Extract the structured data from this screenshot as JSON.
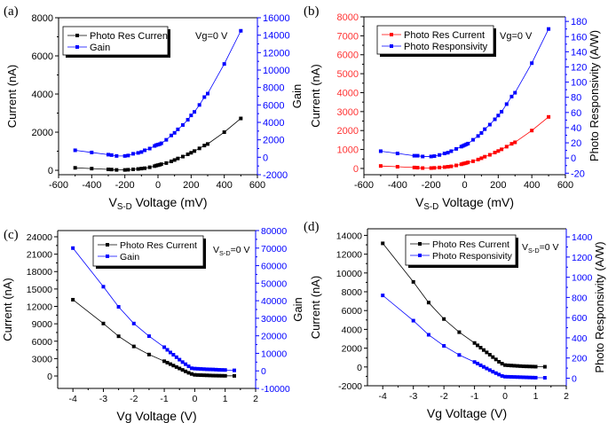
{
  "chart_data": [
    {
      "panel_label": "(a)",
      "type": "line",
      "xlabel": {
        "main": "V",
        "sub": "S-D",
        "rest": " Voltage (mV)"
      },
      "ylabel_left": "Current (nA)",
      "ylabel_right": "Gain",
      "annotation": {
        "main": "Vg=0 V",
        "sub": "",
        "rest": ""
      },
      "xlim": [
        -600,
        600
      ],
      "xticks": [
        -600,
        -400,
        -200,
        0,
        200,
        400,
        600
      ],
      "ylim_left": [
        -230,
        8000
      ],
      "yticks_left": [
        0,
        2000,
        4000,
        6000,
        8000
      ],
      "ylim_right": [
        -2000,
        16000
      ],
      "yticks_right": [
        -2000,
        0,
        2000,
        4000,
        6000,
        8000,
        10000,
        12000,
        14000,
        16000
      ],
      "left_tick_color": "#000000",
      "right_tick_color": "#0000ff",
      "legend_placement": "top-left",
      "grid": false,
      "x": [
        -500,
        -400,
        -300,
        -280,
        -250,
        -200,
        -180,
        -150,
        -120,
        -100,
        -80,
        -50,
        -20,
        -10,
        0,
        10,
        20,
        50,
        80,
        100,
        120,
        150,
        180,
        200,
        220,
        250,
        280,
        300,
        400,
        500
      ],
      "series": [
        {
          "name": "Photo Res Current",
          "axis": "left",
          "color": "#000000",
          "values": [
            130,
            90,
            50,
            40,
            20,
            20,
            30,
            50,
            70,
            90,
            110,
            160,
            220,
            250,
            270,
            290,
            320,
            380,
            470,
            540,
            620,
            720,
            840,
            920,
            1010,
            1150,
            1300,
            1380,
            2000,
            2720
          ]
        },
        {
          "name": "Gain",
          "axis": "right",
          "color": "#0000ff",
          "values": [
            800,
            550,
            300,
            250,
            150,
            150,
            200,
            400,
            500,
            600,
            800,
            1000,
            1300,
            1400,
            1450,
            1500,
            1600,
            2000,
            2500,
            2800,
            3200,
            3700,
            4300,
            4800,
            5200,
            6000,
            6900,
            7300,
            10700,
            14500
          ]
        }
      ]
    },
    {
      "panel_label": "(b)",
      "type": "line",
      "xlabel": {
        "main": "V",
        "sub": "S-D",
        "rest": " Voltage (mV)"
      },
      "ylabel_left": "Current (nA)",
      "ylabel_right": "Photo Responsivity (A/W)",
      "annotation": {
        "main": "Vg=0 V",
        "sub": "",
        "rest": ""
      },
      "xlim": [
        -600,
        600
      ],
      "xticks": [
        -600,
        -400,
        -200,
        0,
        200,
        400,
        600
      ],
      "ylim_left": [
        -330,
        8000
      ],
      "yticks_left": [
        0,
        1000,
        2000,
        3000,
        4000,
        5000,
        6000,
        7000,
        8000
      ],
      "ylim_right": [
        -22,
        186
      ],
      "yticks_right": [
        -20,
        0,
        20,
        40,
        60,
        80,
        100,
        120,
        140,
        160,
        180
      ],
      "left_tick_color": "#ff3333",
      "right_tick_color": "#0000ff",
      "legend_placement": "top-left",
      "grid": false,
      "x": [
        -500,
        -400,
        -300,
        -280,
        -250,
        -200,
        -180,
        -150,
        -120,
        -100,
        -80,
        -50,
        -20,
        -10,
        0,
        10,
        20,
        50,
        80,
        100,
        120,
        150,
        180,
        200,
        220,
        250,
        280,
        300,
        400,
        500
      ],
      "series": [
        {
          "name": "Photo Res Current",
          "axis": "left",
          "color": "#ff0000",
          "values": [
            130,
            90,
            50,
            40,
            20,
            20,
            30,
            50,
            70,
            90,
            110,
            160,
            220,
            250,
            270,
            290,
            320,
            380,
            470,
            540,
            620,
            720,
            840,
            920,
            1010,
            1150,
            1300,
            1380,
            2000,
            2720
          ]
        },
        {
          "name": "Photo Responsivity",
          "axis": "right",
          "color": "#0000ff",
          "values": [
            9,
            6,
            3,
            3,
            2,
            2,
            2.5,
            4,
            6,
            7,
            9,
            12,
            15,
            16,
            17,
            18,
            19,
            24,
            29,
            33,
            38,
            44,
            51,
            56,
            61,
            71,
            81,
            86,
            125,
            170
          ]
        }
      ]
    },
    {
      "panel_label": "(c)",
      "type": "line",
      "xlabel": {
        "main": "Vg Voltage (V)",
        "sub": "",
        "rest": ""
      },
      "ylabel_left": "Current (nA)",
      "ylabel_right": "Gain",
      "annotation": {
        "main": "V",
        "sub": "S-D",
        "rest": "=0 V"
      },
      "xlim": [
        -4.5,
        2
      ],
      "xticks": [
        -4,
        -3,
        -2,
        -1,
        0,
        1,
        2
      ],
      "ylim_left": [
        -2140,
        25070
      ],
      "yticks_left": [
        0,
        3000,
        6000,
        9000,
        12000,
        15000,
        18000,
        21000,
        24000
      ],
      "ylim_right": [
        -10000,
        80000
      ],
      "yticks_right": [
        -10000,
        0,
        10000,
        20000,
        30000,
        40000,
        50000,
        60000,
        70000,
        80000
      ],
      "left_tick_color": "#000000",
      "right_tick_color": "#0000ff",
      "legend_placement": "top-center",
      "grid": false,
      "x": [
        -4,
        -3,
        -2.5,
        -2,
        -1.5,
        -1,
        -0.9,
        -0.8,
        -0.7,
        -0.6,
        -0.5,
        -0.4,
        -0.3,
        -0.2,
        -0.1,
        0,
        0.1,
        0.2,
        0.3,
        0.4,
        0.5,
        0.6,
        0.7,
        0.8,
        0.9,
        1.0,
        1.3
      ],
      "series": [
        {
          "name": "Photo Res Current",
          "axis": "left",
          "color": "#000000",
          "values": [
            13150,
            9050,
            6850,
            5100,
            3700,
            2550,
            2300,
            2050,
            1800,
            1550,
            1300,
            1050,
            800,
            550,
            350,
            200,
            170,
            150,
            130,
            110,
            90,
            70,
            60,
            50,
            40,
            30,
            20
          ]
        },
        {
          "name": "Gain",
          "axis": "right",
          "color": "#0000ff",
          "values": [
            70000,
            48000,
            36500,
            27000,
            19800,
            13500,
            12000,
            10500,
            9200,
            7800,
            6400,
            5000,
            3800,
            2600,
            1500,
            1300,
            1200,
            1100,
            1000,
            900,
            850,
            800,
            700,
            600,
            550,
            500,
            300
          ]
        }
      ]
    },
    {
      "panel_label": "(d)",
      "type": "line",
      "xlabel": {
        "main": "Vg Voltage (V)",
        "sub": "",
        "rest": ""
      },
      "ylabel_left": "Current (nA)",
      "ylabel_right": "Photo Responsivity (A/W)",
      "annotation": {
        "main": "V",
        "sub": "S-D",
        "rest": "=0 V"
      },
      "xlim": [
        -4.5,
        2
      ],
      "xticks": [
        -4,
        -3,
        -2,
        -1,
        0,
        1,
        2
      ],
      "ylim_left": [
        -2000,
        14700
      ],
      "yticks_left": [
        -2000,
        0,
        2000,
        4000,
        6000,
        8000,
        10000,
        12000,
        14000
      ],
      "ylim_right": [
        -75,
        1480
      ],
      "yticks_right": [
        0,
        200,
        400,
        600,
        800,
        1000,
        1200,
        1400
      ],
      "left_tick_color": "#000000",
      "right_tick_color": "#0000ff",
      "legend_placement": "top-center",
      "grid": false,
      "x": [
        -4,
        -3,
        -2.5,
        -2,
        -1.5,
        -1,
        -0.9,
        -0.8,
        -0.7,
        -0.6,
        -0.5,
        -0.4,
        -0.3,
        -0.2,
        -0.1,
        0,
        0.1,
        0.2,
        0.3,
        0.4,
        0.5,
        0.6,
        0.7,
        0.8,
        0.9,
        1.0,
        1.3
      ],
      "series": [
        {
          "name": "Photo Res Current",
          "axis": "left",
          "color": "#000000",
          "values": [
            13150,
            9050,
            6850,
            5100,
            3700,
            2550,
            2300,
            2050,
            1800,
            1550,
            1300,
            1050,
            800,
            550,
            350,
            200,
            170,
            150,
            130,
            110,
            90,
            70,
            60,
            50,
            40,
            30,
            20
          ]
        },
        {
          "name": "Photo Responsivity",
          "axis": "right",
          "color": "#0000ff",
          "values": [
            820,
            570,
            430,
            320,
            230,
            160,
            145,
            128,
            112,
            96,
            80,
            64,
            50,
            36,
            22,
            15,
            14,
            13,
            12,
            11,
            10,
            9,
            8,
            7,
            6,
            5,
            4
          ]
        }
      ]
    }
  ]
}
